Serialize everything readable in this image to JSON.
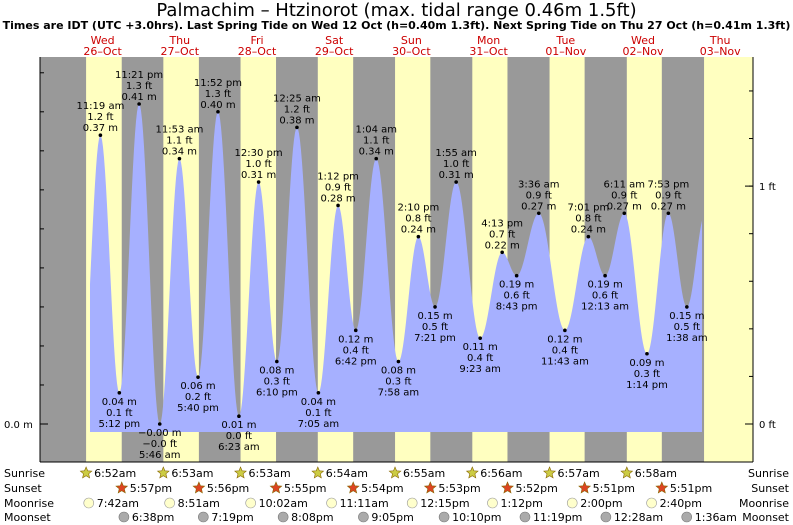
{
  "header": {
    "title": "Palmachim – Htzinorot (max. tidal range 0.46m 1.5ft)",
    "subtitle": "Times are IDT (UTC +3.0hrs). Last Spring Tide on Wed 12 Oct (h=0.40m 1.3ft). Next Spring Tide on Thu 27 Oct (h=0.41m 1.3ft)"
  },
  "chart_data": {
    "type": "area",
    "y_unit": "m",
    "ylim": [
      -0.06,
      0.46
    ],
    "left_axis_ticks": [
      {
        "value": 0.0,
        "label": "0.0 m"
      }
    ],
    "right_axis_ticks": [
      {
        "value": 0.0,
        "label": "0 ft"
      },
      {
        "value": 0.3048,
        "label": "1 ft"
      }
    ],
    "days": [
      {
        "dow": "Wed",
        "date": "26–Oct"
      },
      {
        "dow": "Thu",
        "date": "27–Oct"
      },
      {
        "dow": "Fri",
        "date": "28–Oct"
      },
      {
        "dow": "Sat",
        "date": "29–Oct"
      },
      {
        "dow": "Sun",
        "date": "30–Oct"
      },
      {
        "dow": "Mon",
        "date": "31–Oct"
      },
      {
        "dow": "Tue",
        "date": "01–Nov"
      },
      {
        "dow": "Wed",
        "date": "02–Nov"
      },
      {
        "dow": "Thu",
        "date": "03–Nov"
      }
    ],
    "daylight": [
      {
        "day": 0,
        "sunrise": "6:52am",
        "sunset": "5:57pm"
      },
      {
        "day": 1,
        "sunrise": "6:53am",
        "sunset": "5:56pm"
      },
      {
        "day": 2,
        "sunrise": "6:53am",
        "sunset": "5:55pm"
      },
      {
        "day": 3,
        "sunrise": "6:54am",
        "sunset": "5:54pm"
      },
      {
        "day": 4,
        "sunrise": "6:55am",
        "sunset": "5:53pm"
      },
      {
        "day": 5,
        "sunrise": "6:56am",
        "sunset": "5:52pm"
      },
      {
        "day": 6,
        "sunrise": "6:57am",
        "sunset": "5:51pm"
      },
      {
        "day": 7,
        "sunrise": "6:58am",
        "sunset": "5:51pm"
      }
    ],
    "tides": [
      {
        "day": 0,
        "time": "5:12 pm",
        "m": "0.04 m",
        "ft": "0.1 ft",
        "h": 0.04,
        "type": "low"
      },
      {
        "day": 0,
        "time": "11:19 am",
        "m": "0.37 m",
        "ft": "1.2 ft",
        "h": 0.37,
        "type": "high"
      },
      {
        "day": 0,
        "time": "11:21 pm",
        "m": "0.41 m",
        "ft": "1.3 ft",
        "h": 0.41,
        "type": "high"
      },
      {
        "day": 1,
        "time": "5:46 am",
        "m": "−0.00 m",
        "ft": "−0.0 ft",
        "h": 0.0,
        "type": "low"
      },
      {
        "day": 1,
        "time": "11:53 am",
        "m": "0.34 m",
        "ft": "1.1 ft",
        "h": 0.34,
        "type": "high"
      },
      {
        "day": 1,
        "time": "5:40 pm",
        "m": "0.06 m",
        "ft": "0.2 ft",
        "h": 0.06,
        "type": "low"
      },
      {
        "day": 1,
        "time": "11:52 pm",
        "m": "0.40 m",
        "ft": "1.3 ft",
        "h": 0.4,
        "type": "high"
      },
      {
        "day": 2,
        "time": "6:23 am",
        "m": "0.01 m",
        "ft": "0.0 ft",
        "h": 0.01,
        "type": "low"
      },
      {
        "day": 2,
        "time": "12:30 pm",
        "m": "0.31 m",
        "ft": "1.0 ft",
        "h": 0.31,
        "type": "high"
      },
      {
        "day": 2,
        "time": "6:10 pm",
        "m": "0.08 m",
        "ft": "0.3 ft",
        "h": 0.08,
        "type": "low"
      },
      {
        "day": 3,
        "time": "12:25 am",
        "m": "0.38 m",
        "ft": "1.2 ft",
        "h": 0.38,
        "type": "high"
      },
      {
        "day": 3,
        "time": "7:05 am",
        "m": "0.04 m",
        "ft": "0.1 ft",
        "h": 0.04,
        "type": "low"
      },
      {
        "day": 3,
        "time": "1:12 pm",
        "m": "0.28 m",
        "ft": "0.9 ft",
        "h": 0.28,
        "type": "high"
      },
      {
        "day": 3,
        "time": "6:42 pm",
        "m": "0.12 m",
        "ft": "0.4 ft",
        "h": 0.12,
        "type": "low"
      },
      {
        "day": 4,
        "time": "1:04 am",
        "m": "0.34 m",
        "ft": "1.1 ft",
        "h": 0.34,
        "type": "high"
      },
      {
        "day": 4,
        "time": "7:58 am",
        "m": "0.08 m",
        "ft": "0.3 ft",
        "h": 0.08,
        "type": "low"
      },
      {
        "day": 4,
        "time": "2:10 pm",
        "m": "0.24 m",
        "ft": "0.8 ft",
        "h": 0.24,
        "type": "high"
      },
      {
        "day": 4,
        "time": "7:21 pm",
        "m": "0.15 m",
        "ft": "0.5 ft",
        "h": 0.15,
        "type": "low"
      },
      {
        "day": 5,
        "time": "1:55 am",
        "m": "0.31 m",
        "ft": "1.0 ft",
        "h": 0.31,
        "type": "high"
      },
      {
        "day": 5,
        "time": "9:23 am",
        "m": "0.11 m",
        "ft": "0.4 ft",
        "h": 0.11,
        "type": "low"
      },
      {
        "day": 5,
        "time": "4:13 pm",
        "m": "0.22 m",
        "ft": "0.7 ft",
        "h": 0.22,
        "type": "high"
      },
      {
        "day": 5,
        "time": "8:43 pm",
        "m": "0.19 m",
        "ft": "0.6 ft",
        "h": 0.19,
        "type": "low"
      },
      {
        "day": 6,
        "time": "3:36 am",
        "m": "0.27 m",
        "ft": "0.9 ft",
        "h": 0.27,
        "type": "high"
      },
      {
        "day": 6,
        "time": "11:43 am",
        "m": "0.12 m",
        "ft": "0.4 ft",
        "h": 0.12,
        "type": "low"
      },
      {
        "day": 6,
        "time": "7:01 pm",
        "m": "0.24 m",
        "ft": "0.8 ft",
        "h": 0.24,
        "type": "high"
      },
      {
        "day": 7,
        "time": "12:13 am",
        "m": "0.19 m",
        "ft": "0.6 ft",
        "h": 0.19,
        "type": "low"
      },
      {
        "day": 7,
        "time": "6:11 am",
        "m": "0.27 m",
        "ft": "0.9 ft",
        "h": 0.27,
        "type": "high"
      },
      {
        "day": 7,
        "time": "1:14 pm",
        "m": "0.09 m",
        "ft": "0.3 ft",
        "h": 0.09,
        "type": "low"
      },
      {
        "day": 7,
        "time": "7:53 pm",
        "m": "0.27 m",
        "ft": "0.9 ft",
        "h": 0.27,
        "type": "high"
      },
      {
        "day": 8,
        "time": "1:38 am",
        "m": "0.15 m",
        "ft": "0.5 ft",
        "h": 0.15,
        "type": "low"
      }
    ],
    "astro_row_labels": [
      "Sunrise",
      "Sunset",
      "Moonrise",
      "Moonset"
    ],
    "moonrise": [
      {
        "day": 0,
        "time": "7:42am"
      },
      {
        "day": 1,
        "time": "8:51am"
      },
      {
        "day": 2,
        "time": "10:02am"
      },
      {
        "day": 3,
        "time": "11:11am"
      },
      {
        "day": 4,
        "time": "12:15pm"
      },
      {
        "day": 5,
        "time": "1:12pm"
      },
      {
        "day": 6,
        "time": "2:00pm"
      },
      {
        "day": 7,
        "time": "2:40pm"
      }
    ],
    "moonset": [
      {
        "day": 0,
        "time": "6:38pm"
      },
      {
        "day": 1,
        "time": "7:19pm"
      },
      {
        "day": 2,
        "time": "8:08pm"
      },
      {
        "day": 3,
        "time": "9:05pm"
      },
      {
        "day": 4,
        "time": "10:10pm"
      },
      {
        "day": 5,
        "time": "11:19pm"
      },
      {
        "day": 7,
        "time": "12:28am"
      },
      {
        "day": 8,
        "time": "1:36am"
      }
    ],
    "colors": {
      "night": "#999999",
      "day": "#ffffc0",
      "water": "#a6b0ff",
      "day_label": "#cc0000",
      "sun": "#cccc44",
      "sunset": "#dd4422",
      "moon": "#ffffcc",
      "moonset": "#aaaaaa"
    }
  }
}
